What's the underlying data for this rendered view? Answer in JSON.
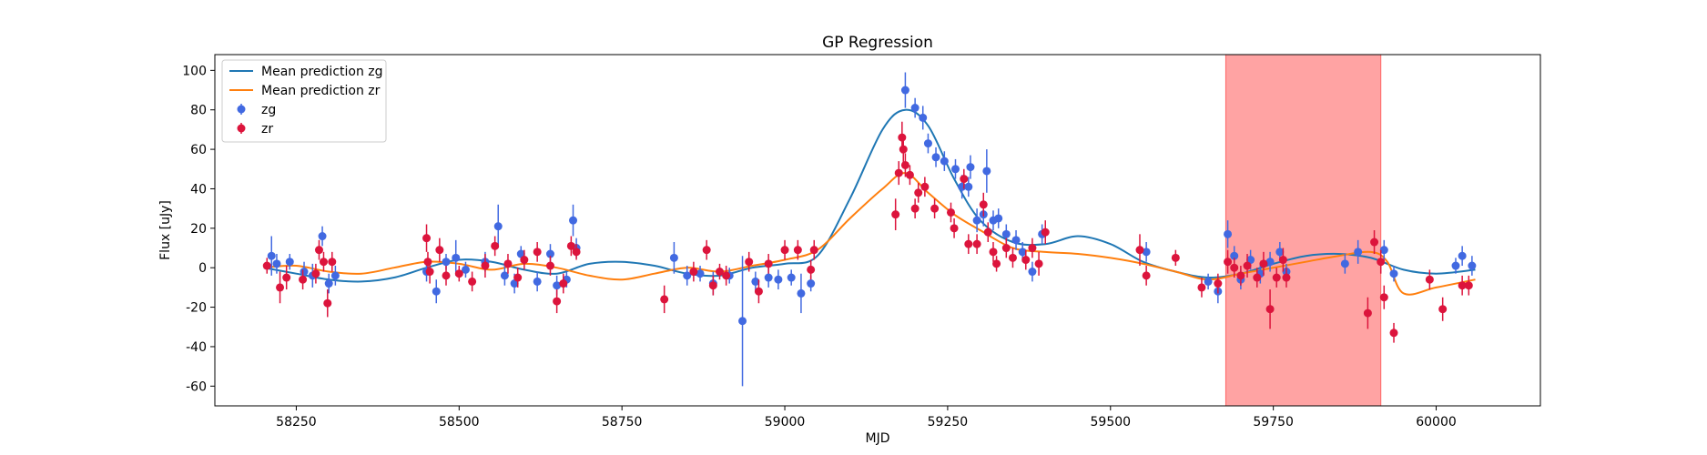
{
  "chart_data": {
    "type": "scatter",
    "title": "GP Regression",
    "xlabel": "MJD",
    "ylabel": "Flux [uJy]",
    "xlim": [
      58125,
      60160
    ],
    "ylim": [
      -70,
      108
    ],
    "xticks": [
      58250,
      58500,
      58750,
      59000,
      59250,
      59500,
      59750,
      60000
    ],
    "yticks": [
      -60,
      -40,
      -20,
      0,
      20,
      40,
      60,
      80,
      100
    ],
    "grid": false,
    "legend": {
      "position": "top-left",
      "entries": [
        "Mean prediction zg",
        "Mean prediction zr",
        "zg",
        "zr"
      ]
    },
    "shaded_region": {
      "x": [
        59677,
        59915
      ],
      "color": "#ff6666"
    },
    "colors": {
      "zg_line": "#1f77b4",
      "zr_line": "#ff7f0e",
      "zg_points": "#4169e1",
      "zr_points": "#dc143c",
      "shade": "#ff6666"
    },
    "lines": [
      {
        "name": "Mean prediction zg",
        "x": [
          58200,
          58250,
          58300,
          58350,
          58400,
          58450,
          58500,
          58550,
          58600,
          58650,
          58700,
          58750,
          58800,
          58850,
          58900,
          58950,
          59000,
          59050,
          59100,
          59150,
          59185,
          59220,
          59260,
          59300,
          59350,
          59400,
          59450,
          59500,
          59550,
          59600,
          59650,
          59700,
          59750,
          59800,
          59850,
          59900,
          59950,
          60000,
          60060
        ],
        "y": [
          0,
          -3,
          -6,
          -7,
          -5,
          0,
          4,
          3,
          -1,
          -3,
          2,
          3,
          1,
          -3,
          -4,
          0,
          2,
          6,
          35,
          70,
          80,
          72,
          45,
          24,
          13,
          12,
          16,
          12,
          3,
          -2,
          -5,
          -3,
          2,
          6,
          7,
          5,
          -1,
          -3,
          -1
        ]
      },
      {
        "name": "Mean prediction zr",
        "x": [
          58200,
          58250,
          58300,
          58350,
          58400,
          58450,
          58500,
          58550,
          58600,
          58650,
          58700,
          58750,
          58800,
          58850,
          58900,
          58950,
          59000,
          59050,
          59100,
          59150,
          59185,
          59220,
          59260,
          59300,
          59350,
          59400,
          59450,
          59500,
          59550,
          59600,
          59650,
          59700,
          59750,
          59800,
          59850,
          59900,
          59925,
          59950,
          60000,
          60060
        ],
        "y": [
          0,
          1,
          -2,
          -3,
          0,
          3,
          2,
          -1,
          2,
          0,
          -4,
          -6,
          -3,
          0,
          -2,
          1,
          4,
          9,
          25,
          40,
          48,
          38,
          27,
          19,
          10,
          8,
          7,
          5,
          2,
          -2,
          -6,
          -3,
          0,
          3,
          6,
          8,
          3,
          -13,
          -10,
          -6
        ]
      }
    ],
    "series": [
      {
        "name": "zg",
        "points": [
          [
            58212,
            6,
            10
          ],
          [
            58220,
            2,
            5
          ],
          [
            58240,
            3,
            4
          ],
          [
            58262,
            -2,
            5
          ],
          [
            58275,
            -4,
            6
          ],
          [
            58290,
            16,
            5
          ],
          [
            58300,
            -8,
            5
          ],
          [
            58310,
            -4,
            5
          ],
          [
            58450,
            -2,
            5
          ],
          [
            58465,
            -12,
            6
          ],
          [
            58480,
            3,
            4
          ],
          [
            58495,
            5,
            9
          ],
          [
            58510,
            -1,
            4
          ],
          [
            58540,
            3,
            5
          ],
          [
            58560,
            21,
            11
          ],
          [
            58570,
            -4,
            5
          ],
          [
            58585,
            -8,
            5
          ],
          [
            58595,
            7,
            4
          ],
          [
            58620,
            -7,
            5
          ],
          [
            58640,
            7,
            5
          ],
          [
            58650,
            -9,
            5
          ],
          [
            58665,
            -6,
            4
          ],
          [
            58675,
            24,
            8
          ],
          [
            58680,
            10,
            5
          ],
          [
            58830,
            5,
            8
          ],
          [
            58850,
            -4,
            5
          ],
          [
            58870,
            -3,
            4
          ],
          [
            58890,
            -8,
            6
          ],
          [
            58915,
            -4,
            4
          ],
          [
            58935,
            -27,
            33
          ],
          [
            58955,
            -7,
            5
          ],
          [
            58975,
            -5,
            5
          ],
          [
            58990,
            -6,
            5
          ],
          [
            59010,
            -5,
            4
          ],
          [
            59025,
            -13,
            10
          ],
          [
            59040,
            -8,
            4
          ],
          [
            59185,
            90,
            9
          ],
          [
            59200,
            81,
            5
          ],
          [
            59212,
            76,
            6
          ],
          [
            59220,
            63,
            5
          ],
          [
            59232,
            56,
            5
          ],
          [
            59245,
            54,
            5
          ],
          [
            59262,
            50,
            5
          ],
          [
            59272,
            41,
            6
          ],
          [
            59282,
            41,
            5
          ],
          [
            59285,
            51,
            6
          ],
          [
            59295,
            24,
            6
          ],
          [
            59305,
            27,
            6
          ],
          [
            59310,
            49,
            11
          ],
          [
            59320,
            24,
            5
          ],
          [
            59328,
            25,
            5
          ],
          [
            59340,
            17,
            5
          ],
          [
            59355,
            14,
            5
          ],
          [
            59365,
            8,
            5
          ],
          [
            59380,
            -2,
            5
          ],
          [
            59395,
            17,
            5
          ],
          [
            59555,
            8,
            5
          ],
          [
            59650,
            -7,
            4
          ],
          [
            59665,
            -12,
            6
          ],
          [
            59680,
            17,
            7
          ],
          [
            59690,
            6,
            5
          ],
          [
            59700,
            -6,
            5
          ],
          [
            59715,
            4,
            5
          ],
          [
            59730,
            -3,
            5
          ],
          [
            59745,
            3,
            5
          ],
          [
            59760,
            8,
            5
          ],
          [
            59770,
            -2,
            4
          ],
          [
            59860,
            2,
            5
          ],
          [
            59880,
            8,
            6
          ],
          [
            59920,
            9,
            5
          ],
          [
            59935,
            -3,
            4
          ],
          [
            60030,
            1,
            4
          ],
          [
            60040,
            6,
            5
          ],
          [
            60055,
            1,
            5
          ]
        ]
      },
      {
        "name": "zr",
        "points": [
          [
            58205,
            1,
            4
          ],
          [
            58225,
            -10,
            8
          ],
          [
            58235,
            -5,
            6
          ],
          [
            58260,
            -6,
            5
          ],
          [
            58280,
            -3,
            5
          ],
          [
            58285,
            9,
            5
          ],
          [
            58292,
            3,
            5
          ],
          [
            58298,
            -18,
            7
          ],
          [
            58305,
            3,
            5
          ],
          [
            58450,
            15,
            7
          ],
          [
            58452,
            3,
            5
          ],
          [
            58455,
            -2,
            6
          ],
          [
            58470,
            9,
            6
          ],
          [
            58480,
            -4,
            5
          ],
          [
            58500,
            -3,
            4
          ],
          [
            58520,
            -7,
            5
          ],
          [
            58540,
            1,
            6
          ],
          [
            58555,
            11,
            5
          ],
          [
            58575,
            2,
            5
          ],
          [
            58590,
            -5,
            5
          ],
          [
            58600,
            4,
            5
          ],
          [
            58620,
            8,
            5
          ],
          [
            58640,
            1,
            5
          ],
          [
            58650,
            -17,
            6
          ],
          [
            58660,
            -8,
            5
          ],
          [
            58672,
            11,
            5
          ],
          [
            58680,
            8,
            4
          ],
          [
            58815,
            -16,
            7
          ],
          [
            58860,
            -2,
            5
          ],
          [
            58880,
            9,
            5
          ],
          [
            58890,
            -9,
            5
          ],
          [
            58900,
            -2,
            4
          ],
          [
            58910,
            -4,
            5
          ],
          [
            58945,
            3,
            5
          ],
          [
            58960,
            -12,
            6
          ],
          [
            58975,
            2,
            5
          ],
          [
            59000,
            9,
            5
          ],
          [
            59020,
            9,
            5
          ],
          [
            59040,
            -1,
            5
          ],
          [
            59045,
            9,
            5
          ],
          [
            59170,
            27,
            8
          ],
          [
            59175,
            48,
            6
          ],
          [
            59180,
            66,
            8
          ],
          [
            59182,
            60,
            7
          ],
          [
            59185,
            52,
            6
          ],
          [
            59192,
            47,
            5
          ],
          [
            59200,
            30,
            5
          ],
          [
            59205,
            38,
            5
          ],
          [
            59215,
            41,
            5
          ],
          [
            59230,
            30,
            5
          ],
          [
            59255,
            28,
            5
          ],
          [
            59260,
            20,
            5
          ],
          [
            59275,
            45,
            5
          ],
          [
            59282,
            12,
            5
          ],
          [
            59295,
            12,
            5
          ],
          [
            59305,
            32,
            6
          ],
          [
            59312,
            18,
            5
          ],
          [
            59320,
            8,
            5
          ],
          [
            59325,
            2,
            4
          ],
          [
            59340,
            10,
            5
          ],
          [
            59350,
            5,
            5
          ],
          [
            59370,
            4,
            5
          ],
          [
            59380,
            10,
            5
          ],
          [
            59390,
            2,
            6
          ],
          [
            59400,
            18,
            6
          ],
          [
            59545,
            9,
            8
          ],
          [
            59555,
            -4,
            5
          ],
          [
            59600,
            5,
            4
          ],
          [
            59640,
            -10,
            5
          ],
          [
            59665,
            -8,
            5
          ],
          [
            59680,
            3,
            6
          ],
          [
            59690,
            0,
            5
          ],
          [
            59700,
            -4,
            5
          ],
          [
            59710,
            1,
            6
          ],
          [
            59725,
            -5,
            5
          ],
          [
            59735,
            2,
            6
          ],
          [
            59745,
            -21,
            10
          ],
          [
            59755,
            -5,
            5
          ],
          [
            59765,
            4,
            6
          ],
          [
            59770,
            -5,
            5
          ],
          [
            59895,
            -23,
            8
          ],
          [
            59905,
            13,
            6
          ],
          [
            59915,
            3,
            6
          ],
          [
            59920,
            -15,
            6
          ],
          [
            59935,
            -33,
            5
          ],
          [
            59990,
            -6,
            5
          ],
          [
            60010,
            -21,
            6
          ],
          [
            60040,
            -9,
            5
          ],
          [
            60050,
            -9,
            5
          ]
        ]
      }
    ]
  }
}
